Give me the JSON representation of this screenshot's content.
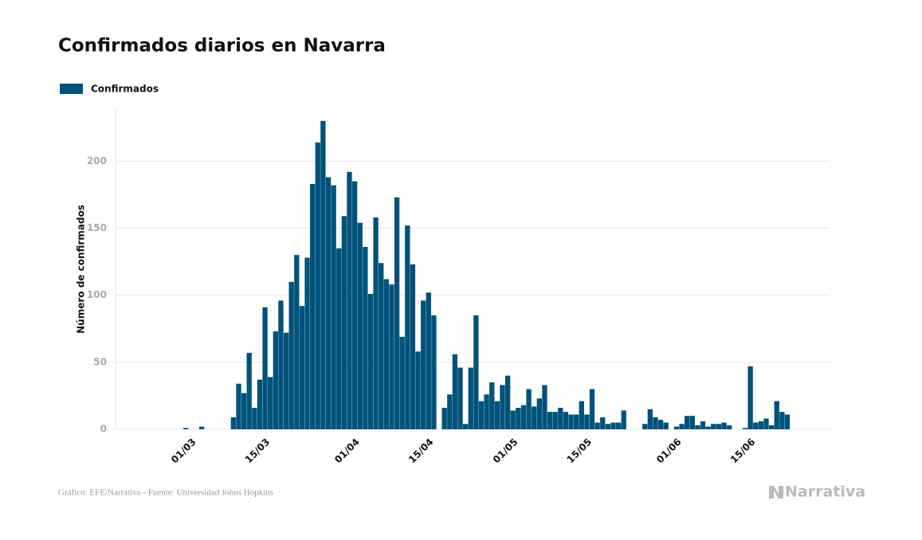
{
  "chart_data": {
    "type": "bar",
    "title": "Confirmados diarios en Navarra",
    "y_label": "Número de confirmados",
    "source": "Gráfico: EFE/Narrativa - Fuente: Universidad Johns Hopkins",
    "brand": "Narrativa",
    "legend": "top-left",
    "grid": true,
    "ylim": [
      0,
      240
    ],
    "yticks": [
      0,
      50,
      100,
      150,
      200
    ],
    "categories": [
      null,
      null,
      null,
      null,
      null,
      null,
      null,
      "01/03",
      null,
      null,
      null,
      null,
      null,
      null,
      null,
      null,
      null,
      null,
      null,
      null,
      null,
      "15/03",
      null,
      null,
      null,
      null,
      null,
      null,
      null,
      null,
      null,
      null,
      null,
      null,
      null,
      null,
      null,
      null,
      "01/04",
      null,
      null,
      null,
      null,
      null,
      null,
      null,
      null,
      null,
      null,
      null,
      null,
      null,
      "15/04",
      null,
      null,
      null,
      null,
      null,
      null,
      null,
      null,
      null,
      null,
      null,
      null,
      null,
      null,
      null,
      "01/05",
      null,
      null,
      null,
      null,
      null,
      null,
      null,
      null,
      null,
      null,
      null,
      null,
      null,
      "15/05",
      null,
      null,
      null,
      null,
      null,
      null,
      null,
      null,
      null,
      null,
      null,
      null,
      null,
      null,
      null,
      null,
      "01/06",
      null,
      null,
      null,
      null,
      null,
      null,
      null,
      null,
      null,
      null,
      null,
      null,
      null,
      "15/06",
      null,
      null,
      null,
      null,
      null,
      null,
      null
    ],
    "series": [
      {
        "name": "Confirmados",
        "color": "#00527a",
        "values": [
          0,
          0,
          0,
          0,
          0,
          0,
          1,
          0,
          0,
          2,
          0,
          0,
          0,
          0,
          0,
          9,
          34,
          27,
          57,
          16,
          37,
          91,
          39,
          73,
          96,
          72,
          110,
          130,
          92,
          128,
          183,
          214,
          230,
          188,
          182,
          135,
          159,
          192,
          185,
          154,
          136,
          101,
          158,
          124,
          112,
          108,
          173,
          69,
          152,
          123,
          58,
          96,
          102,
          85,
          0,
          16,
          26,
          56,
          46,
          4,
          46,
          85,
          21,
          26,
          35,
          21,
          33,
          40,
          14,
          16,
          18,
          30,
          17,
          23,
          33,
          13,
          13,
          16,
          13,
          11,
          11,
          21,
          11,
          30,
          5,
          9,
          4,
          5,
          5,
          14,
          0,
          0,
          0,
          4,
          15,
          9,
          7,
          5,
          0,
          2,
          4,
          10,
          10,
          3,
          6,
          2,
          4,
          4,
          5,
          3,
          0,
          0,
          1,
          47,
          5,
          6,
          8,
          3,
          21,
          13,
          11
        ]
      }
    ]
  }
}
